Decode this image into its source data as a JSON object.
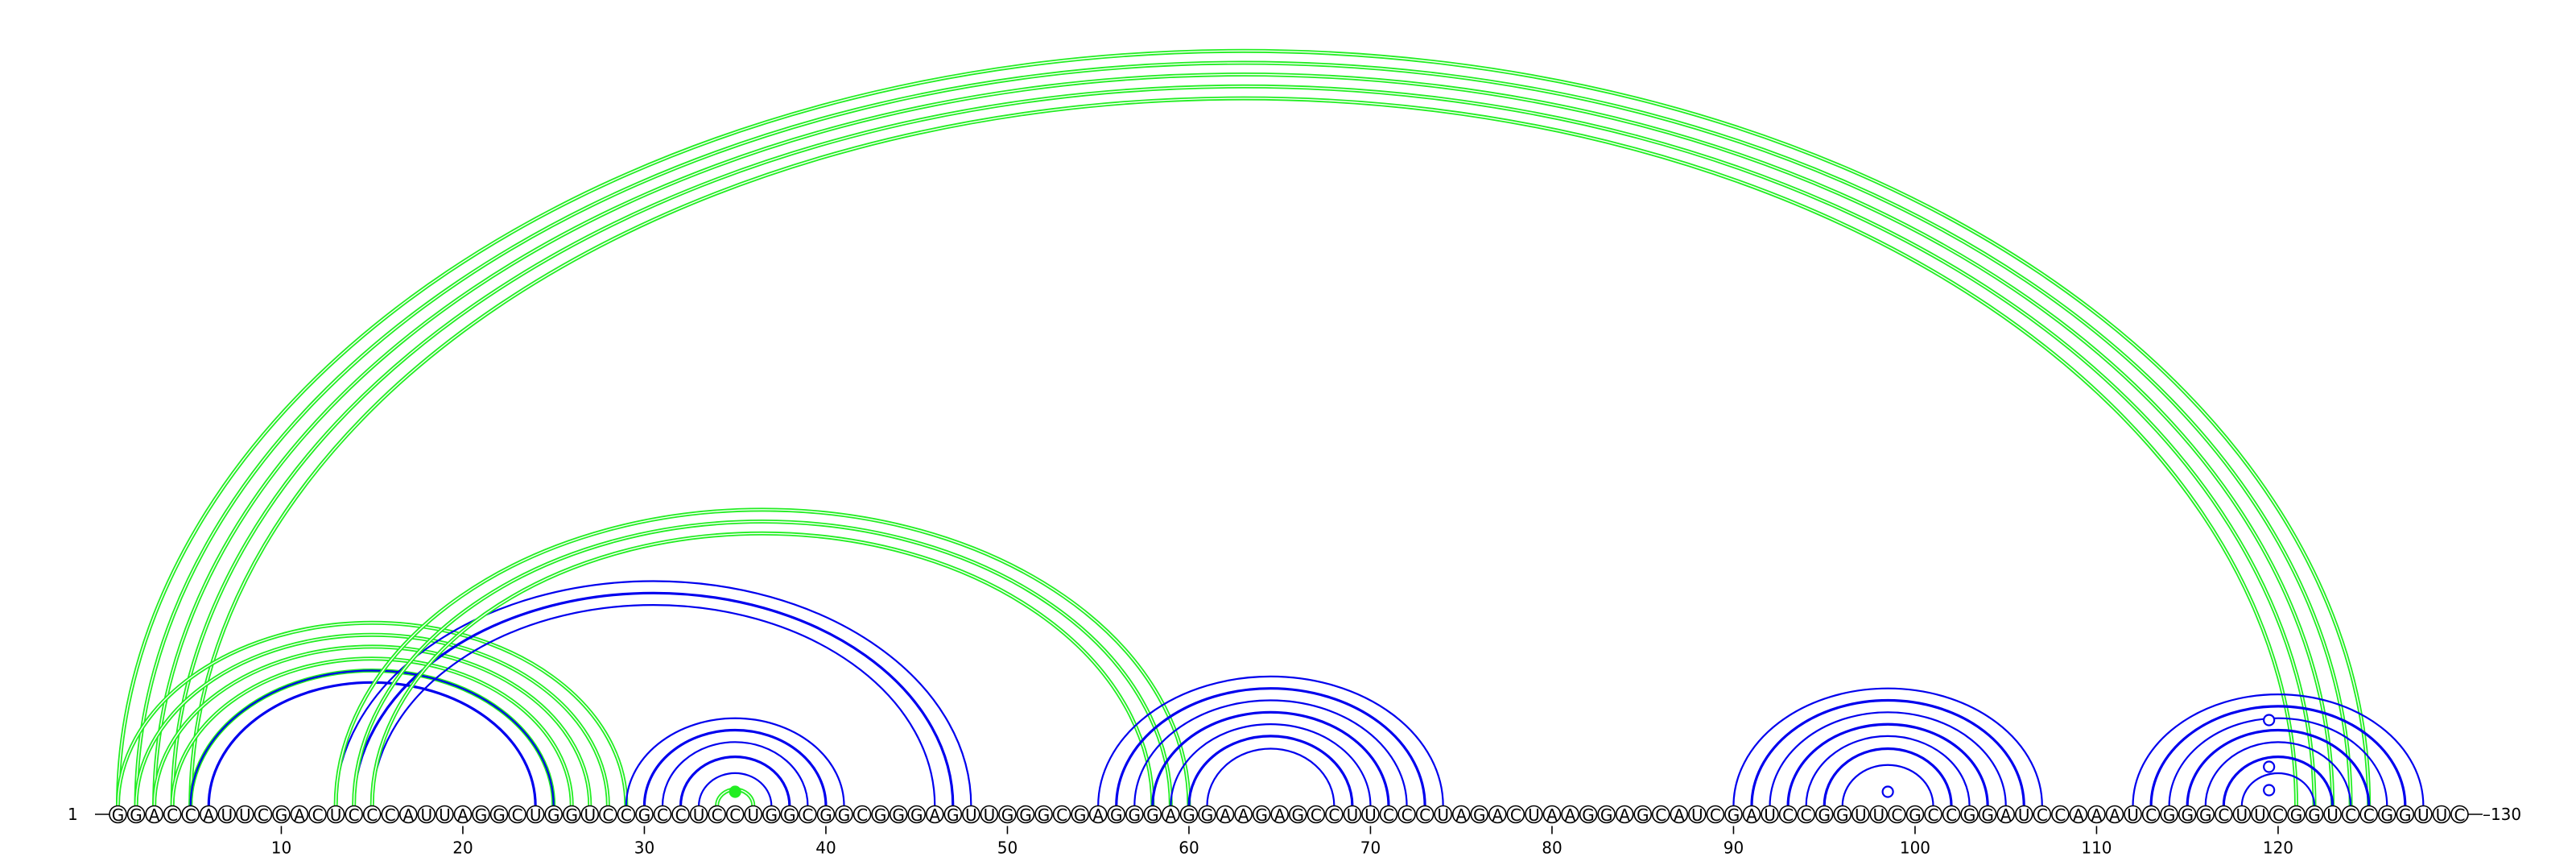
{
  "diagram": {
    "type": "rna-arc-diagram",
    "sequence": "GGACCAUUCGACUCCCAUUAGGCUGGUCCGCCUCCUGGCGGCGGGAGUUGGGCGAGGGAGGAAGAGCCUUCCCUAGACUAAGGAGCAUCGAUCCGGUUCGCCGGAUCCAAAUCGGGCUUCGGUCCGGUUC",
    "start_label": "1",
    "end_label": "130",
    "ticks": [
      10,
      20,
      30,
      40,
      50,
      60,
      70,
      80,
      90,
      100,
      110,
      120
    ],
    "colors": {
      "blue": "#0000ee",
      "green": "#22ee22",
      "black": "#000000"
    },
    "arc_groups": [
      {
        "color": "green",
        "i": 1,
        "j": 125,
        "n": 5
      },
      {
        "color": "green",
        "i": 1,
        "j": 29,
        "n": 5
      },
      {
        "color": "blue",
        "i": 5,
        "j": 25,
        "n": 2
      },
      {
        "color": "blue",
        "i": 13,
        "j": 48,
        "n": 3
      },
      {
        "color": "green",
        "i": 13,
        "j": 60,
        "n": 3
      },
      {
        "color": "blue",
        "i": 29,
        "j": 41,
        "n": 7
      },
      {
        "color": "green",
        "i": 34,
        "j": 36,
        "n": 1
      },
      {
        "color": "blue",
        "i": 55,
        "j": 74,
        "n": 7
      },
      {
        "color": "blue",
        "i": 90,
        "j": 107,
        "n": 7
      },
      {
        "color": "blue",
        "i": 112,
        "j": 128,
        "n": 7
      }
    ],
    "markers": [
      {
        "color": "green",
        "filled": true,
        "at": 35,
        "j_end": 35
      },
      {
        "color": "blue",
        "filled": false,
        "at": 98.5
      },
      {
        "color": "blue",
        "filled": false,
        "at": 119.5,
        "level": 1
      },
      {
        "color": "blue",
        "filled": false,
        "at": 119.5,
        "level": 2
      },
      {
        "color": "blue",
        "filled": false,
        "at": 119.5,
        "level": 3
      }
    ]
  }
}
